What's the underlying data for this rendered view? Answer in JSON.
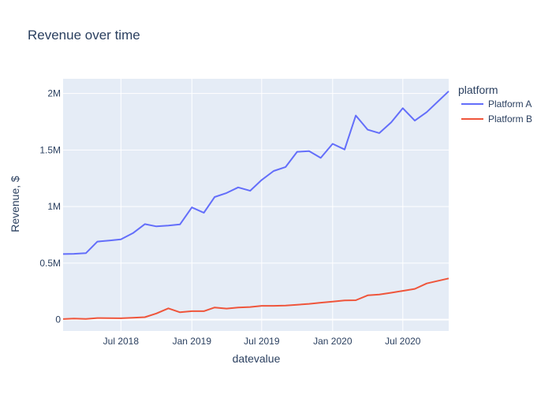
{
  "chart_data": {
    "type": "line",
    "title": "Revenue over time",
    "xlabel": "datevalue",
    "ylabel": "Revenue, $",
    "legend_title": "platform",
    "legend_position": "top-right",
    "grid": true,
    "x_ticks": [
      "Jul 2018",
      "Jan 2019",
      "Jul 2019",
      "Jan 2020",
      "Jul 2020"
    ],
    "y_ticks": [
      {
        "value": 0,
        "label": "0"
      },
      {
        "value": 500000,
        "label": "0.5M"
      },
      {
        "value": 1000000,
        "label": "1M"
      },
      {
        "value": 1500000,
        "label": "1.5M"
      },
      {
        "value": 2000000,
        "label": "2M"
      }
    ],
    "ylim": [
      -100000,
      2130000
    ],
    "xlim": [
      "2018-02-01",
      "2020-10-28"
    ],
    "x": [
      "2018-02-01",
      "2018-03-01",
      "2018-04-01",
      "2018-05-01",
      "2018-06-01",
      "2018-07-01",
      "2018-08-01",
      "2018-09-01",
      "2018-10-01",
      "2018-11-01",
      "2018-12-01",
      "2019-01-01",
      "2019-02-01",
      "2019-03-01",
      "2019-04-01",
      "2019-05-01",
      "2019-06-01",
      "2019-07-01",
      "2019-08-01",
      "2019-09-01",
      "2019-10-01",
      "2019-11-01",
      "2019-12-01",
      "2020-01-01",
      "2020-02-01",
      "2020-03-01",
      "2020-04-01",
      "2020-05-01",
      "2020-06-01",
      "2020-07-01",
      "2020-08-01",
      "2020-09-01",
      "2020-10-28"
    ],
    "series": [
      {
        "name": "Platform A",
        "color": "#636efa",
        "values": [
          580000,
          582000,
          588000,
          690000,
          700000,
          710000,
          765000,
          845000,
          825000,
          832000,
          842000,
          993000,
          945000,
          1085000,
          1120000,
          1170000,
          1140000,
          1235000,
          1315000,
          1350000,
          1485000,
          1490000,
          1430000,
          1555000,
          1505000,
          1805000,
          1680000,
          1650000,
          1745000,
          1870000,
          1760000,
          1835000,
          2020000
        ]
      },
      {
        "name": "Platform B",
        "color": "#ef553b",
        "values": [
          5000,
          10000,
          6000,
          14000,
          13000,
          12000,
          17000,
          22000,
          55000,
          100000,
          65000,
          75000,
          75000,
          108000,
          98000,
          108000,
          112000,
          122000,
          122000,
          125000,
          132000,
          140000,
          150000,
          160000,
          170000,
          172000,
          215000,
          222000,
          238000,
          255000,
          272000,
          320000,
          365000
        ]
      }
    ]
  }
}
